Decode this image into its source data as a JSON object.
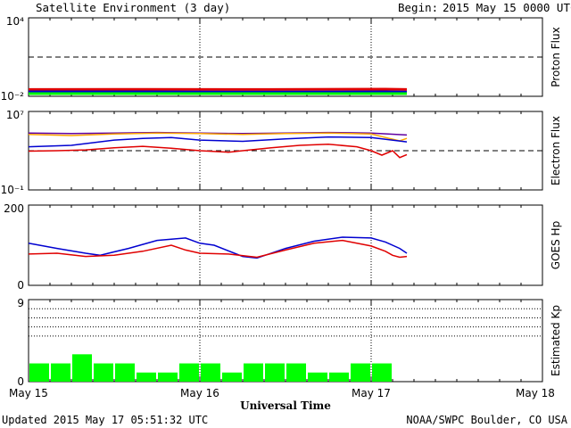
{
  "header": {
    "title": "Satellite Environment (3 day)",
    "begin_label": "Begin:",
    "begin_value": "2015 May 15 0000 UTC"
  },
  "footer": {
    "updated": "Updated 2015 May 17 05:51:32 UTC",
    "credit": "NOAA/SWPC Boulder, CO USA"
  },
  "x_axis": {
    "label": "Universal Time",
    "ticks": [
      "May 15",
      "May 16",
      "May 17",
      "May 18"
    ],
    "range_hours": [
      0,
      72
    ]
  },
  "colors": {
    "red": "#e00000",
    "blue": "#0000d0",
    "green": "#00ff00",
    "orange": "#ffa500",
    "purple": "#6000a0"
  },
  "chart_data": [
    {
      "type": "line",
      "id": "proton",
      "ylabel": "Proton Flux",
      "scale": "log",
      "ylim": [
        0.01,
        10000
      ],
      "ytick_labels": {
        "top": "10⁴",
        "bottom": "10⁻²"
      },
      "threshold": 10,
      "series": [
        {
          "color": "red",
          "x": [
            0,
            16.5,
            34,
            50,
            53
          ],
          "y": [
            0.033,
            0.034,
            0.033,
            0.035,
            0.033
          ]
        },
        {
          "color": "blue",
          "x": [
            0,
            16.5,
            34,
            50,
            53
          ],
          "y": [
            0.022,
            0.022,
            0.021,
            0.022,
            0.021
          ]
        },
        {
          "color": "green",
          "x": [
            0,
            16.5,
            34,
            50,
            53
          ],
          "y": [
            0.016,
            0.016,
            0.016,
            0.016,
            0.016
          ]
        }
      ]
    },
    {
      "type": "line",
      "id": "electron",
      "ylabel": "Electron Flux",
      "scale": "log",
      "ylim": [
        0.1,
        10000000
      ],
      "ytick_labels": {
        "top": "10⁷",
        "bottom": "10⁻¹"
      },
      "threshold": 1000,
      "series": [
        {
          "color": "purple",
          "x": [
            0,
            6,
            12,
            18,
            24,
            30,
            36,
            42,
            48,
            53
          ],
          "y": [
            63000,
            56000,
            63000,
            71000,
            63000,
            56000,
            63000,
            71000,
            63000,
            40000
          ]
        },
        {
          "color": "orange",
          "x": [
            0,
            6,
            12,
            18,
            24,
            30,
            36,
            42,
            48,
            50,
            52,
            53
          ],
          "y": [
            45000,
            35000,
            50000,
            63000,
            56000,
            45000,
            56000,
            63000,
            50000,
            22000,
            10000,
            18000
          ]
        },
        {
          "color": "blue",
          "x": [
            0,
            6,
            12,
            16,
            20,
            24,
            30,
            36,
            42,
            48,
            53
          ],
          "y": [
            2500,
            3500,
            12000,
            18000,
            22000,
            12000,
            9000,
            16000,
            25000,
            22000,
            8000
          ]
        },
        {
          "color": "red",
          "x": [
            0,
            4,
            8,
            12,
            16,
            20,
            24,
            28,
            30,
            34,
            38,
            42,
            46,
            48,
            49.5,
            51,
            52,
            53
          ],
          "y": [
            900,
            1000,
            1200,
            2000,
            2800,
            1800,
            1000,
            700,
            1000,
            2000,
            3500,
            4500,
            2500,
            1000,
            350,
            1000,
            200,
            400
          ]
        }
      ]
    },
    {
      "type": "line",
      "id": "goes_hp",
      "ylabel": "GOES Hp",
      "scale": "linear",
      "ylim": [
        0,
        200
      ],
      "ytick_labels": {
        "top": "200",
        "bottom": "0"
      },
      "series": [
        {
          "color": "blue",
          "x": [
            0,
            4,
            8,
            10,
            14,
            18,
            22,
            24,
            26,
            30,
            32,
            36,
            40,
            44,
            48,
            50,
            52,
            53
          ],
          "y": [
            105,
            92,
            80,
            75,
            92,
            112,
            118,
            105,
            100,
            72,
            68,
            92,
            110,
            120,
            118,
            108,
            92,
            80
          ]
        },
        {
          "color": "red",
          "x": [
            0,
            4,
            8,
            12,
            16,
            20,
            22,
            24,
            28,
            32,
            36,
            40,
            44,
            48,
            50,
            51,
            52,
            53
          ],
          "y": [
            78,
            80,
            72,
            75,
            85,
            100,
            88,
            80,
            78,
            70,
            88,
            105,
            112,
            98,
            85,
            75,
            70,
            72
          ]
        }
      ]
    },
    {
      "type": "bar",
      "id": "kp",
      "ylabel": "Estimated Kp",
      "ylim": [
        0,
        9
      ],
      "ytick_labels": {
        "top": "9",
        "bottom": "0"
      },
      "bar_hours": 3,
      "values": [
        2,
        2,
        3,
        2,
        2,
        1,
        1,
        2,
        2,
        1,
        2,
        2,
        2,
        1,
        1,
        2,
        2
      ]
    }
  ]
}
